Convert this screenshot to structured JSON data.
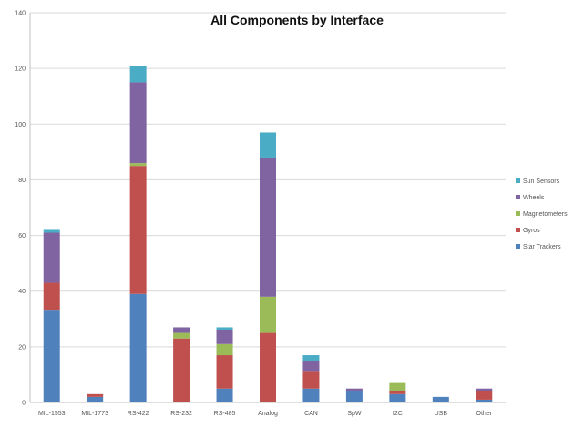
{
  "chart_data": {
    "type": "bar",
    "stacked": true,
    "title": "All Components by Interface",
    "xlabel": "",
    "ylabel": "",
    "ylim": [
      0,
      140
    ],
    "yticks": [
      0,
      20,
      40,
      60,
      80,
      100,
      120,
      140
    ],
    "grid": true,
    "legend_position": "right",
    "categories": [
      "MIL-1553",
      "MIL-1773",
      "RS-422",
      "RS-232",
      "RS-485",
      "Analog",
      "CAN",
      "SpW",
      "I2C",
      "USB",
      "Other"
    ],
    "series": [
      {
        "name": "Star Trackers",
        "color": "#4f81bd",
        "values": [
          33,
          2,
          39,
          0,
          5,
          0,
          5,
          4,
          3,
          2,
          1
        ]
      },
      {
        "name": "Gyros",
        "color": "#c0504d",
        "values": [
          10,
          1,
          46,
          23,
          12,
          25,
          6,
          0,
          1,
          0,
          3
        ]
      },
      {
        "name": "Magnetometers",
        "color": "#9bbb59",
        "values": [
          0,
          0,
          1,
          2,
          4,
          13,
          0,
          0,
          3,
          0,
          0
        ]
      },
      {
        "name": "Wheels",
        "color": "#8064a2",
        "values": [
          18,
          0,
          29,
          2,
          5,
          50,
          4,
          1,
          0,
          0,
          1
        ]
      },
      {
        "name": "Sun Sensors",
        "color": "#4bacc6",
        "values": [
          1,
          0,
          6,
          0,
          1,
          9,
          2,
          0,
          0,
          0,
          0
        ]
      }
    ],
    "legend_order": [
      "Sun Sensors",
      "Wheels",
      "Magnetometers",
      "Gyros",
      "Star Trackers"
    ]
  }
}
